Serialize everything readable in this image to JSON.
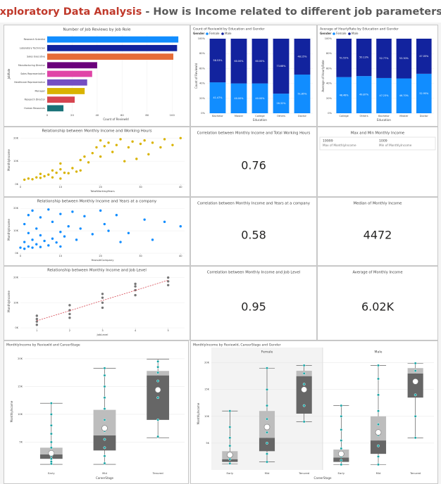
{
  "header": {
    "title": "Exploratory Data Analysis",
    "subtitle": "- How is Income related to different job parameters?"
  },
  "chart_data": [
    {
      "type": "bar",
      "orientation": "horizontal",
      "title": "Number of Job Reviews by Job Role",
      "x_label": "Count of ReviewId",
      "y_label": "JobRole",
      "categories": [
        "Research Scientist",
        "Laboratory Technician",
        "Sales Executive",
        "Manufacturing Director",
        "Sales Representative",
        "Healthcare Representative",
        "Manager",
        "Research Director",
        "Human Resources"
      ],
      "values": [
        105,
        104,
        101,
        40,
        36,
        32,
        30,
        22,
        13
      ],
      "colors": [
        "#118dff",
        "#12239e",
        "#e66c37",
        "#6b007b",
        "#e044a7",
        "#744ec2",
        "#d9b300",
        "#d64550",
        "#197278"
      ],
      "xlim": [
        0,
        110
      ],
      "xticks": [
        0,
        20,
        40,
        60,
        80,
        100
      ]
    },
    {
      "type": "bar",
      "stacked": true,
      "title": "Count of ReviewId by Education and Gender",
      "legend_title": "Gender",
      "x_label": "Education",
      "y_label": "Count of ReviewId",
      "categories": [
        "Bachelor",
        "Master",
        "College",
        "Others",
        "Doctor"
      ],
      "series": [
        {
          "name": "Female",
          "color": "#118dff",
          "values": [
            41.47,
            40,
            40,
            26.32,
            51.85
          ],
          "value_labels": [
            "41.47%",
            "40.00%",
            "40.00%",
            "26.32%",
            "51.85%"
          ]
        },
        {
          "name": "Male",
          "color": "#12239e",
          "values": [
            58.53,
            60,
            60,
            73.68,
            48.15
          ],
          "value_labels": [
            "58.53%",
            "60.00%",
            "60.00%",
            "73.68%",
            "48.15%"
          ]
        }
      ],
      "ylim": [
        0,
        100
      ],
      "yticks": [
        {
          "value": 0,
          "label": "0%"
        },
        {
          "value": 20,
          "label": "20%"
        },
        {
          "value": 40,
          "label": "40%"
        },
        {
          "value": 60,
          "label": "60%"
        },
        {
          "value": 80,
          "label": "80%"
        },
        {
          "value": 100,
          "label": "100%"
        }
      ]
    },
    {
      "type": "bar",
      "stacked": true,
      "title": "Average of HourlyRate by Education and Gender",
      "legend_title": "Gender",
      "x_label": "Education",
      "y_label": "Average of HourlyRate",
      "categories": [
        "College",
        "Others",
        "Bachelor",
        "Master",
        "Doctor"
      ],
      "series": [
        {
          "name": "Female",
          "color": "#118dff",
          "values": [
            48.48,
            49.87,
            47.23,
            46.7,
            52.95
          ],
          "value_labels": [
            "48.48%",
            "49.87%",
            "47.23%",
            "46.70%",
            "52.95%"
          ]
        },
        {
          "name": "Male",
          "color": "#12239e",
          "values": [
            51.52,
            50.13,
            52.77,
            53.3,
            47.05
          ],
          "value_labels": [
            "51.52%",
            "50.13%",
            "52.77%",
            "53.30%",
            "47.05%"
          ]
        }
      ],
      "ylim": [
        0,
        100
      ],
      "yticks": [
        {
          "value": 0,
          "label": "0%"
        },
        {
          "value": 20,
          "label": "20%"
        },
        {
          "value": 40,
          "label": "40%"
        },
        {
          "value": 60,
          "label": "60%"
        },
        {
          "value": 80,
          "label": "80%"
        },
        {
          "value": 100,
          "label": "100%"
        }
      ]
    },
    {
      "type": "scatter",
      "title": "Relationship between Monthly Income and Working Hours",
      "x_label": "TotalWorkingYears",
      "y_label": "MonthlyIncome",
      "color": "#d9b300",
      "x": [
        1,
        2,
        3,
        4,
        5,
        5,
        6,
        7,
        8,
        8,
        9,
        10,
        10,
        10,
        11,
        12,
        13,
        14,
        15,
        15,
        16,
        17,
        18,
        19,
        20,
        20,
        21,
        22,
        23,
        24,
        25,
        26,
        27,
        28,
        29,
        30,
        31,
        32,
        33,
        35,
        36,
        38,
        40
      ],
      "y": [
        2000,
        2500,
        2200,
        3000,
        2800,
        4500,
        3500,
        4200,
        3000,
        6000,
        5000,
        2500,
        6500,
        9000,
        5000,
        4800,
        7000,
        5500,
        6000,
        10500,
        12000,
        9500,
        13500,
        16000,
        12000,
        19000,
        16500,
        18000,
        14000,
        17000,
        19500,
        10000,
        16000,
        18500,
        11000,
        17500,
        19000,
        13000,
        18000,
        16000,
        19500,
        17000,
        19999
      ],
      "xlim": [
        0,
        41
      ],
      "xticks": [
        0,
        10,
        20,
        30,
        40
      ],
      "ylim": [
        0,
        21000
      ],
      "yticks": [
        {
          "value": 0,
          "label": "0K"
        },
        {
          "value": 10000,
          "label": "10K"
        },
        {
          "value": 20000,
          "label": "20K"
        }
      ]
    },
    {
      "type": "scatter",
      "title": "Relationship between Monthly Income and Years at a company",
      "x_label": "YearsAtCompany",
      "y_label": "MonthlyIncome",
      "color": "#118dff",
      "x": [
        0,
        1,
        1,
        1,
        2,
        2,
        2,
        3,
        3,
        3,
        4,
        4,
        5,
        5,
        5,
        6,
        7,
        7,
        8,
        8,
        9,
        10,
        10,
        10,
        11,
        12,
        13,
        14,
        15,
        16,
        18,
        20,
        21,
        22,
        24,
        25,
        27,
        31,
        33,
        36,
        40
      ],
      "y": [
        2500,
        2000,
        5000,
        13000,
        3000,
        9000,
        17000,
        2500,
        6000,
        19000,
        4000,
        11000,
        2800,
        8000,
        16000,
        5500,
        3500,
        19500,
        6500,
        14000,
        4800,
        9500,
        17500,
        3000,
        7500,
        12000,
        18500,
        6000,
        11000,
        16500,
        8500,
        19000,
        13000,
        10000,
        17000,
        5000,
        9000,
        15000,
        6000,
        14000,
        12000
      ],
      "xlim": [
        0,
        41
      ],
      "xticks": [
        0,
        10,
        20,
        30,
        40
      ],
      "ylim": [
        0,
        21000
      ],
      "yticks": [
        {
          "value": 0,
          "label": "0K"
        },
        {
          "value": 10000,
          "label": "10K"
        },
        {
          "value": 20000,
          "label": "20K"
        }
      ]
    },
    {
      "type": "scatter",
      "title": "Relationship between Monthly Income and Job Level",
      "x_label": "JobLevel",
      "y_label": "MonthlyIncome",
      "color": "#777777",
      "trendline": true,
      "trend_color": "#d64550",
      "x": [
        1,
        1,
        1,
        1,
        2,
        2,
        2,
        2,
        3,
        3,
        3,
        3,
        4,
        4,
        4,
        4,
        5,
        5,
        5
      ],
      "y": [
        1200,
        2500,
        3500,
        4800,
        4000,
        5500,
        7000,
        9000,
        8000,
        10000,
        12000,
        13500,
        13000,
        15000,
        16500,
        17500,
        17000,
        18500,
        19999
      ],
      "xlim": [
        0.5,
        5.5
      ],
      "xticks": [
        1,
        2,
        3,
        4,
        5
      ],
      "ylim": [
        0,
        21000
      ],
      "yticks": [
        {
          "value": 0,
          "label": "0K"
        },
        {
          "value": 10000,
          "label": "10K"
        },
        {
          "value": 20000,
          "label": "20K"
        }
      ]
    },
    {
      "type": "box",
      "title": "MonthlyIncome by ReviewId and CareerStage",
      "x_label": "CareerStage",
      "y_label": "MonthlyIncome",
      "color": "#1aa3a3",
      "categories": [
        "Early",
        "Mid",
        "Tenured"
      ],
      "boxes": [
        {
          "min": 1000,
          "q1": 2000,
          "median": 2800,
          "q3": 4000,
          "max": 12000,
          "mean": 3000
        },
        {
          "min": 1000,
          "q1": 3500,
          "median": 6200,
          "q3": 10800,
          "max": 18300,
          "mean": 7500
        },
        {
          "min": 5800,
          "q1": 9000,
          "median": 17000,
          "q3": 17800,
          "max": 19900,
          "mean": 14400
        }
      ],
      "points": [
        [
          1100,
          1500,
          2000,
          2500,
          3000,
          4000,
          5000,
          6500,
          8000,
          10000,
          12000
        ],
        [
          1200,
          2500,
          4000,
          5500,
          7000,
          9000,
          11000,
          13000,
          15000,
          17000,
          18300
        ],
        [
          6000,
          9000,
          13000,
          16000,
          17500,
          18500,
          19500
        ]
      ],
      "ylim": [
        0,
        21000
      ],
      "yticks": [
        {
          "value": 5000,
          "label": "5K"
        },
        {
          "value": 10000,
          "label": "10K"
        },
        {
          "value": 15000,
          "label": "15K"
        },
        {
          "value": 20000,
          "label": "20K"
        }
      ]
    },
    {
      "type": "box",
      "title": "MonthlyIncome by ReviewId, CareerStage and Gender",
      "x_label": "CareerStage",
      "y_label": "MonthlyIncome",
      "color": "#1aa3a3",
      "categories": [
        "Early",
        "Mid",
        "Tenured"
      ],
      "facets": [
        {
          "name": "Female",
          "boxes": [
            {
              "min": 1100,
              "q1": 1500,
              "median": 2000,
              "q3": 3500,
              "max": 11000,
              "mean": 2800
            },
            {
              "min": 1500,
              "q1": 3500,
              "median": 6000,
              "q3": 11000,
              "max": 19000,
              "mean": 8000
            },
            {
              "min": 9000,
              "q1": 10500,
              "median": 17500,
              "q3": 18500,
              "max": 19500,
              "mean": 15000
            }
          ],
          "points": [
            [
              1200,
              2000,
              3000,
              4500,
              6000,
              8000,
              11000
            ],
            [
              1500,
              3000,
              5000,
              7000,
              9500,
              12000,
              15000,
              19000
            ],
            [
              9000,
              12000,
              16000,
              18000,
              19500
            ]
          ]
        },
        {
          "name": "Male",
          "boxes": [
            {
              "min": 1000,
              "q1": 1500,
              "median": 2300,
              "q3": 3800,
              "max": 12000,
              "mean": 3000
            },
            {
              "min": 1000,
              "q1": 3000,
              "median": 5500,
              "q3": 10000,
              "max": 19500,
              "mean": 7000
            },
            {
              "min": 6000,
              "q1": 13500,
              "median": 18000,
              "q3": 19000,
              "max": 19900,
              "mean": 16500
            }
          ],
          "points": [
            [
              1000,
              1800,
              2500,
              4000,
              5500,
              7500,
              10000,
              12000
            ],
            [
              1000,
              2500,
              4500,
              6500,
              8500,
              11000,
              14000,
              17000,
              19500
            ],
            [
              6000,
              10000,
              14000,
              18500,
              19900
            ]
          ]
        }
      ],
      "ylim": [
        0,
        21000
      ],
      "yticks": [
        {
          "value": 5000,
          "label": "5K"
        },
        {
          "value": 10000,
          "label": "10K"
        },
        {
          "value": 15000,
          "label": "15K"
        },
        {
          "value": 20000,
          "label": "20K"
        }
      ]
    }
  ],
  "cards": [
    {
      "title": "Correlation between Monthly Income and Total Working Hours",
      "value": 0.76
    },
    {
      "title": "Max and Min Monthly Income",
      "items": [
        {
          "value": 19999,
          "label": "Max of MonthlyIncome"
        },
        {
          "value": 1009,
          "label": "Min of MonthlyIncome"
        }
      ]
    },
    {
      "title": "Correlation between Monthly Income and Years at a company",
      "value": 0.58
    },
    {
      "title": "Median of Monthly Income",
      "value": 4472
    },
    {
      "title": "Correlation between Monthly Income and Job Level",
      "value": 0.95
    },
    {
      "title": "Average of Monthly Income",
      "value": "6.02K"
    }
  ]
}
